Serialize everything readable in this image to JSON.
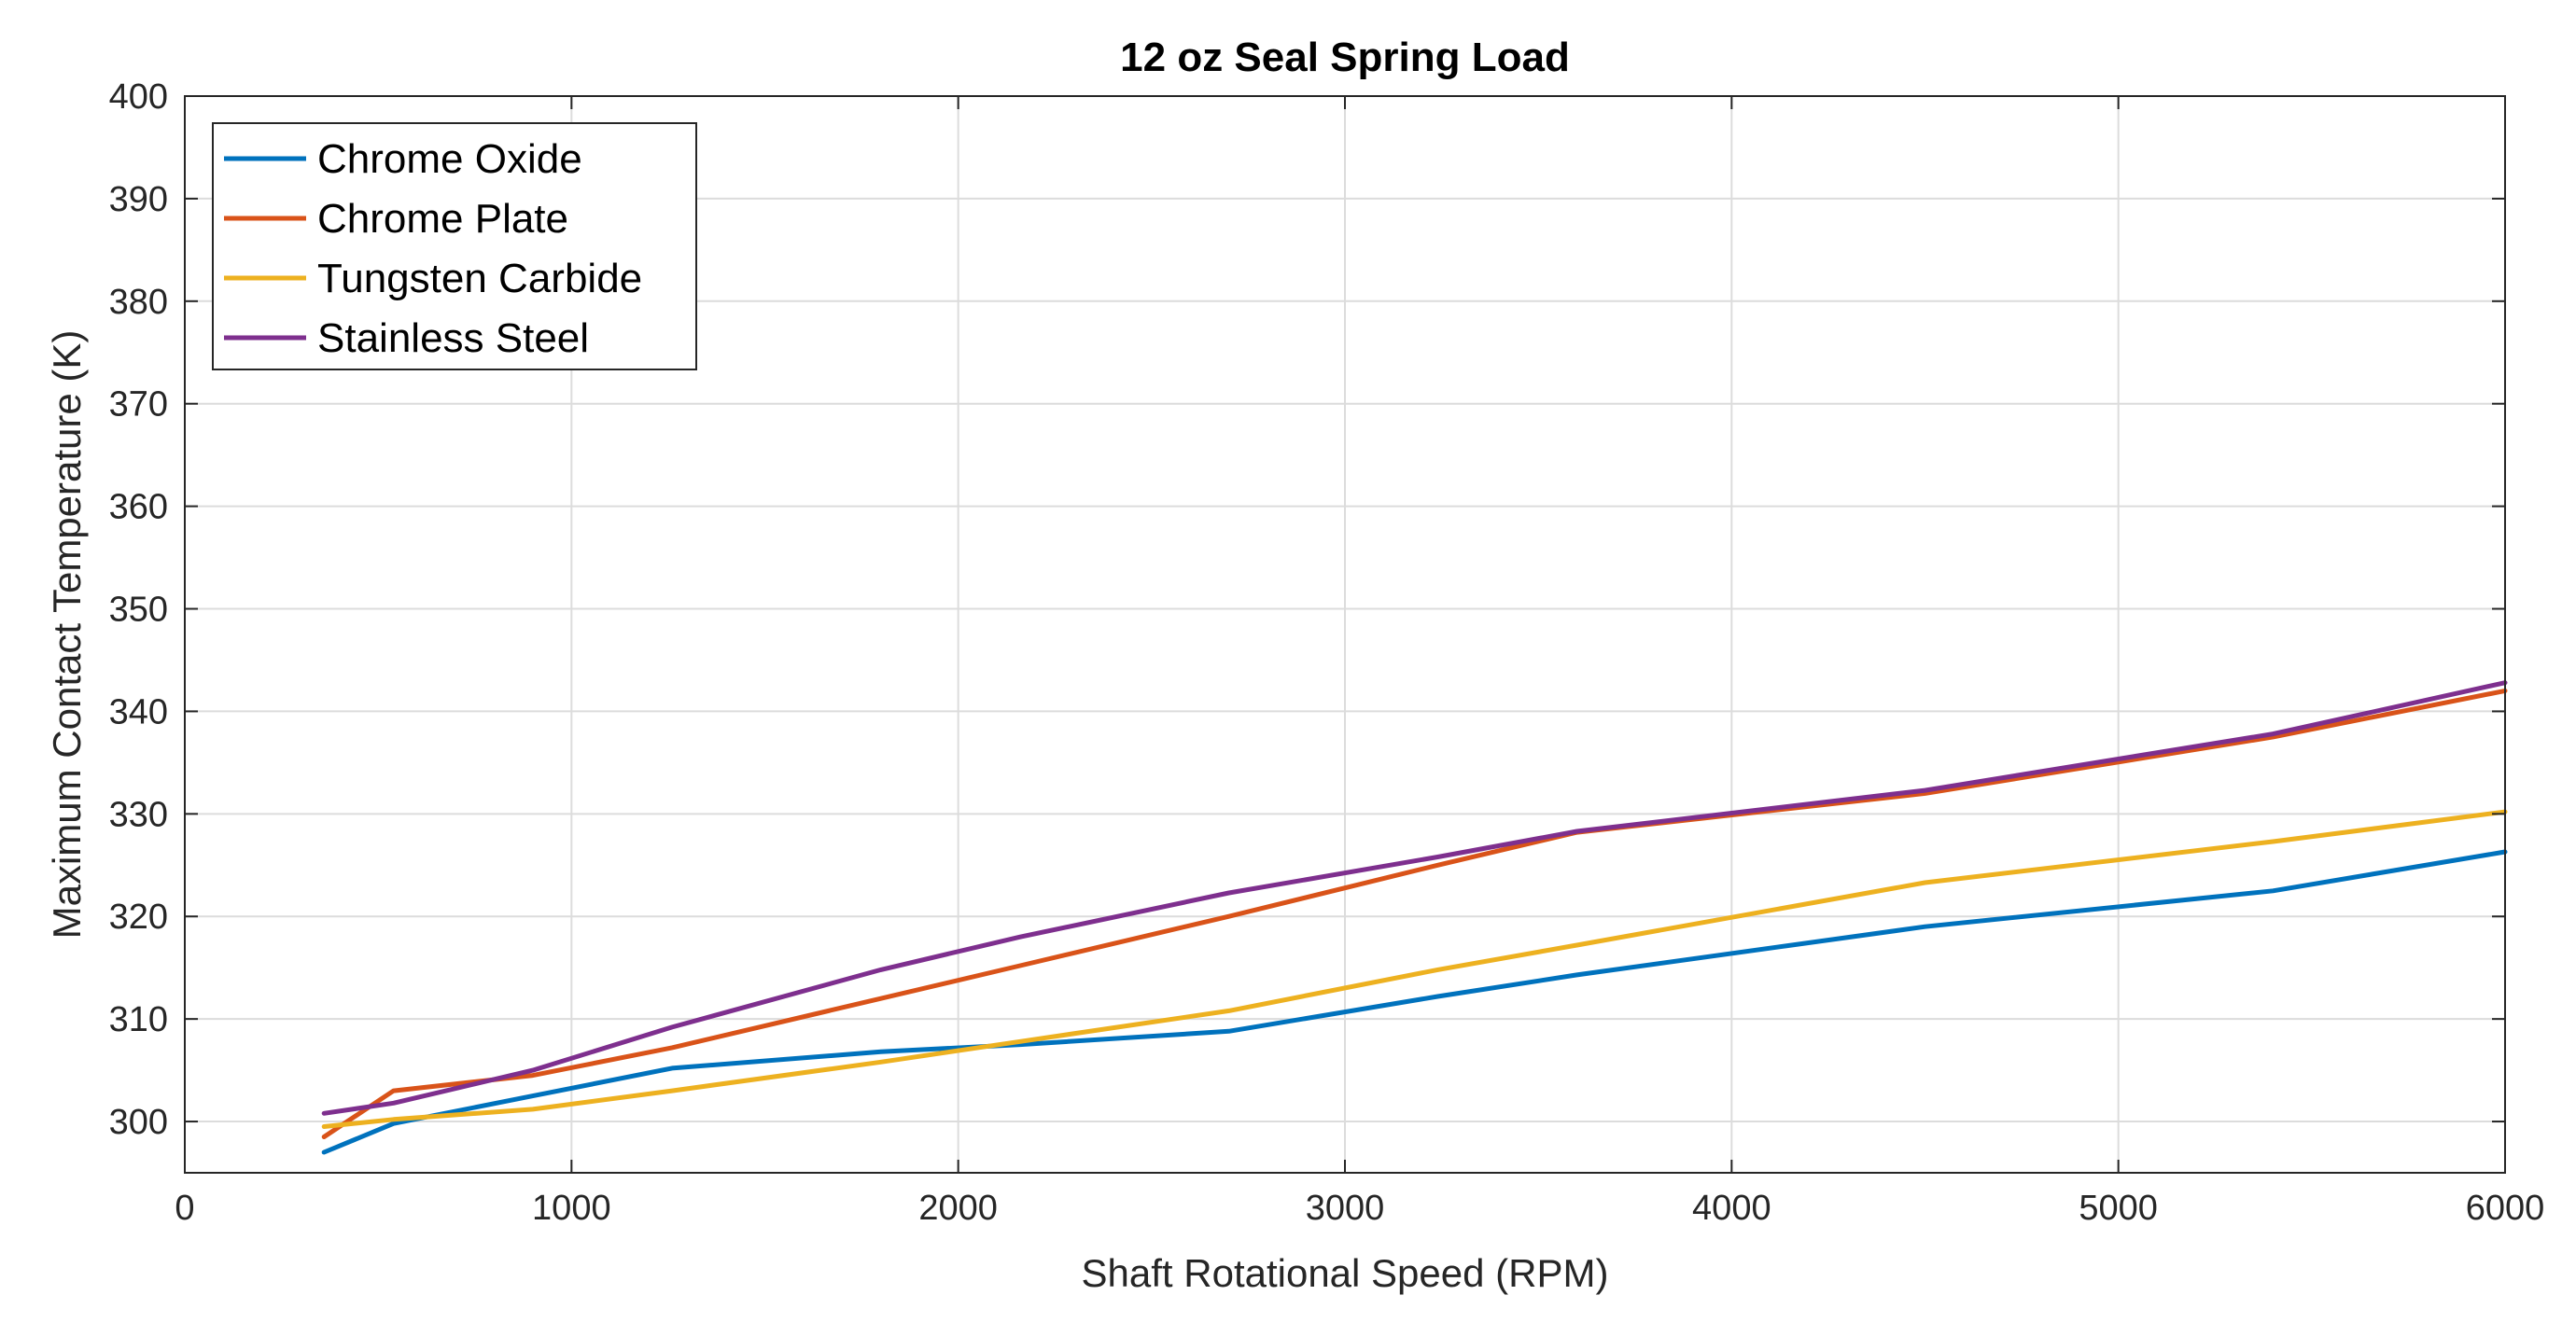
{
  "chart_data": {
    "type": "line",
    "title": "12 oz Seal Spring Load",
    "xlabel": "Shaft Rotational Speed (RPM)",
    "ylabel": "Maximum Contact Temperature (K)",
    "xlim": [
      0,
      6000
    ],
    "ylim": [
      295,
      400
    ],
    "xticks": [
      0,
      1000,
      2000,
      3000,
      4000,
      5000,
      6000
    ],
    "yticks": [
      300,
      310,
      320,
      330,
      340,
      350,
      360,
      370,
      380,
      390,
      400
    ],
    "grid": true,
    "legend_position": "top-left",
    "series": [
      {
        "name": "Chrome Oxide",
        "color": "#0072BD",
        "x": [
          360,
          540,
          900,
          1260,
          1800,
          2160,
          2700,
          3240,
          3600,
          4500,
          5400,
          6000
        ],
        "y": [
          297,
          299.8,
          302.5,
          305.2,
          306.8,
          307.5,
          308.8,
          312.2,
          314.3,
          319,
          322.5,
          326.3
        ]
      },
      {
        "name": "Chrome Plate",
        "color": "#D95319",
        "x": [
          360,
          540,
          900,
          1260,
          1800,
          2160,
          2700,
          3240,
          3600,
          4500,
          5400,
          6000
        ],
        "y": [
          298.5,
          303,
          304.5,
          307.2,
          312,
          315.2,
          320,
          325,
          328.2,
          332,
          337.5,
          342
        ]
      },
      {
        "name": "Tungsten Carbide",
        "color": "#EDB120",
        "x": [
          360,
          540,
          900,
          1260,
          1800,
          2160,
          2700,
          3240,
          3600,
          4500,
          5400,
          6000
        ],
        "y": [
          299.5,
          300.2,
          301.2,
          303,
          305.8,
          307.8,
          310.8,
          314.8,
          317.2,
          323.3,
          327.3,
          330.2
        ]
      },
      {
        "name": "Stainless Steel",
        "color": "#7E2F8E",
        "x": [
          360,
          540,
          900,
          1260,
          1800,
          2160,
          2700,
          3240,
          3600,
          4500,
          5400,
          6000
        ],
        "y": [
          300.8,
          301.8,
          305,
          309.2,
          314.8,
          318,
          322.3,
          325.8,
          328.3,
          332.3,
          337.8,
          342.8
        ]
      }
    ]
  }
}
